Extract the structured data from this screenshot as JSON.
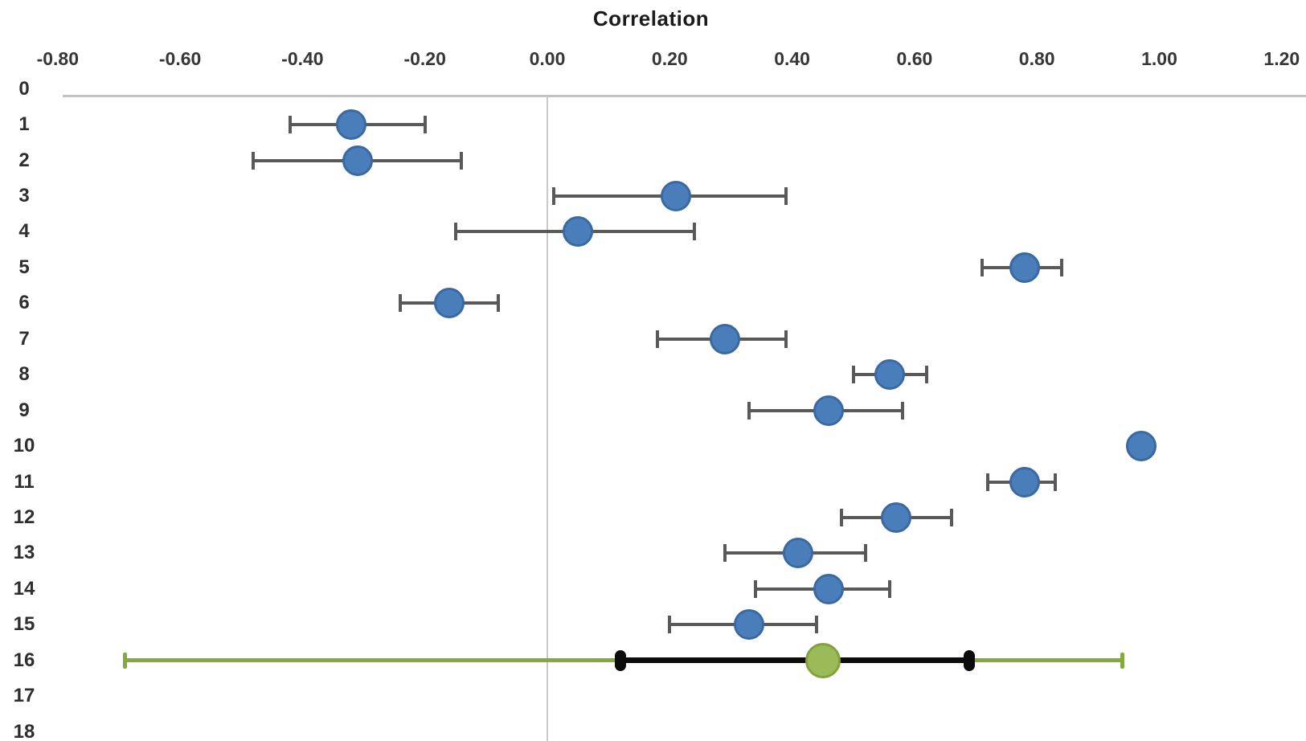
{
  "chart_data": {
    "type": "scatter",
    "title": "Correlation",
    "subtitle": "",
    "legend": null,
    "grid": "zero-line-only",
    "x_axis": {
      "label": "Correlation",
      "position": "top",
      "range": [
        -0.8,
        1.2
      ],
      "tick_labels": [
        "-0.80",
        "-0.60",
        "-0.40",
        "-0.20",
        "0.00",
        "0.20",
        "0.40",
        "0.60",
        "0.80",
        "1.00",
        "1.20"
      ],
      "tick_values": [
        -0.8,
        -0.6,
        -0.4,
        -0.2,
        0.0,
        0.2,
        0.4,
        0.6,
        0.8,
        1.0,
        1.2
      ]
    },
    "y_axis": {
      "label": "",
      "position": "left",
      "direction": "top-down",
      "range": [
        0,
        18
      ],
      "tick_labels": [
        "0",
        "1",
        "2",
        "3",
        "4",
        "5",
        "6",
        "7",
        "8",
        "9",
        "10",
        "11",
        "12",
        "13",
        "14",
        "15",
        "16",
        "17",
        "18"
      ],
      "tick_values": [
        0,
        1,
        2,
        3,
        4,
        5,
        6,
        7,
        8,
        9,
        10,
        11,
        12,
        13,
        14,
        15,
        16,
        17,
        18
      ]
    },
    "zero_reference_line_x": 0.0,
    "studies": [
      {
        "id": "1",
        "row": 1,
        "r": -0.32,
        "ci": [
          -0.42,
          -0.2
        ]
      },
      {
        "id": "2",
        "row": 2,
        "r": -0.31,
        "ci": [
          -0.48,
          -0.14
        ]
      },
      {
        "id": "3",
        "row": 3,
        "r": 0.21,
        "ci": [
          0.01,
          0.39
        ]
      },
      {
        "id": "4",
        "row": 4,
        "r": 0.05,
        "ci": [
          -0.15,
          0.24
        ]
      },
      {
        "id": "5",
        "row": 5,
        "r": 0.78,
        "ci": [
          0.71,
          0.84
        ]
      },
      {
        "id": "6",
        "row": 6,
        "r": -0.16,
        "ci": [
          -0.24,
          -0.08
        ]
      },
      {
        "id": "7",
        "row": 7,
        "r": 0.29,
        "ci": [
          0.18,
          0.39
        ]
      },
      {
        "id": "8",
        "row": 8,
        "r": 0.56,
        "ci": [
          0.5,
          0.62
        ]
      },
      {
        "id": "9",
        "row": 9,
        "r": 0.46,
        "ci": [
          0.33,
          0.58
        ]
      },
      {
        "id": "10",
        "row": 10,
        "r": 0.97,
        "ci": [
          0.97,
          0.97
        ]
      },
      {
        "id": "11",
        "row": 11,
        "r": 0.78,
        "ci": [
          0.72,
          0.83
        ]
      },
      {
        "id": "12",
        "row": 12,
        "r": 0.57,
        "ci": [
          0.48,
          0.66
        ]
      },
      {
        "id": "13",
        "row": 13,
        "r": 0.41,
        "ci": [
          0.29,
          0.52
        ]
      },
      {
        "id": "14",
        "row": 14,
        "r": 0.46,
        "ci": [
          0.34,
          0.56
        ]
      },
      {
        "id": "15",
        "row": 15,
        "r": 0.33,
        "ci": [
          0.2,
          0.44
        ]
      }
    ],
    "summary": {
      "id": "16",
      "row": 16,
      "r": 0.45,
      "inner_ci": [
        0.12,
        0.69
      ],
      "outer_ci": [
        -0.69,
        0.94
      ]
    }
  },
  "colors": {
    "study_point_fill": "#4a7ebb",
    "study_point_border": "#3a69a2",
    "error_bar": "#595959",
    "summary_point_fill": "#9bbb59",
    "summary_point_border": "#84a140",
    "summary_inner_bar": "#0c0c0c",
    "summary_outer_bar": "#84a93c",
    "axis_line": "#c2c2c2",
    "zero_gridline": "#c9c9c9"
  }
}
